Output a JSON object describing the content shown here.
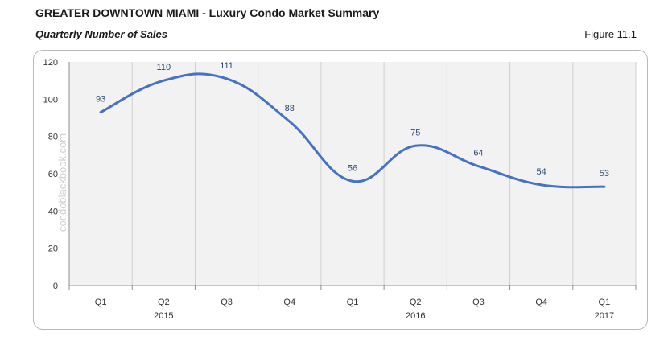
{
  "header": {
    "title": "GREATER DOWNTOWN MIAMI - Luxury Condo Market Summary",
    "subtitle": "Quarterly Number of Sales",
    "figure_label": "Figure 11.1"
  },
  "watermark": "condoblackbook.com",
  "colors": {
    "line": "#4472c4",
    "plot_bg": "#f2f2f2",
    "grid": "#d0d0d0"
  },
  "chart_data": {
    "type": "line",
    "title": "Quarterly Number of Sales",
    "xlabel": "",
    "ylabel": "",
    "ylim": [
      0,
      120
    ],
    "yticks": [
      0,
      20,
      40,
      60,
      80,
      100,
      120
    ],
    "categories": [
      "Q1",
      "Q2",
      "Q3",
      "Q4",
      "Q1",
      "Q2",
      "Q3",
      "Q4",
      "Q1"
    ],
    "year_labels": [
      "",
      "2015",
      "",
      "",
      "",
      "2016",
      "",
      "",
      "2017"
    ],
    "series": [
      {
        "name": "Number of Sales",
        "values": [
          93,
          110,
          111,
          88,
          56,
          75,
          64,
          54,
          53
        ]
      }
    ],
    "grid": true,
    "smooth": true
  }
}
